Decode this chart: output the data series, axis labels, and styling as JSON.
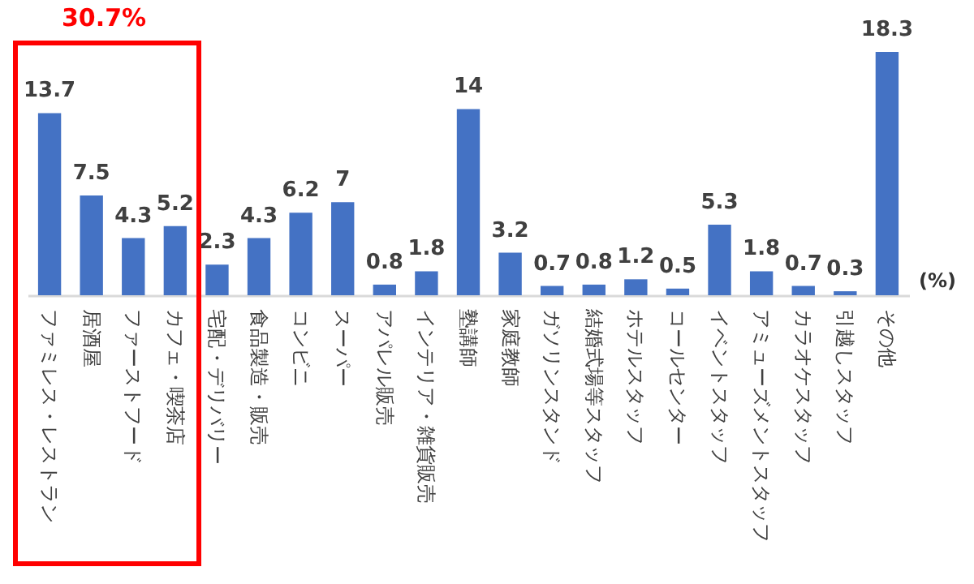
{
  "chart_data": {
    "type": "bar",
    "categories": [
      "ファミレス・レストラン",
      "居酒屋",
      "ファーストフード",
      "カフェ・喫茶店",
      "宅配・デリバリー",
      "食品製造・販売",
      "コンビニ",
      "スーパー",
      "アパレル販売",
      "インテリア・雑貨販売",
      "塾講師",
      "家庭教師",
      "ガソリンスタンド",
      "結婚式場等スタッフ",
      "ホテルスタッフ",
      "コールセンター",
      "イベントスタッフ",
      "アミューズメントスタッフ",
      "カラオケスタッフ",
      "引越しスタッフ",
      "その他"
    ],
    "values": [
      13.7,
      7.5,
      4.3,
      5.2,
      2.3,
      4.3,
      6.2,
      7,
      0.8,
      1.8,
      14,
      3.2,
      0.7,
      0.8,
      1.2,
      0.5,
      5.3,
      1.8,
      0.7,
      0.3,
      18.3
    ],
    "color": "#4472c4",
    "data_labels": true,
    "ylabel": "(%)",
    "annotations": [
      "30.7%"
    ]
  }
}
